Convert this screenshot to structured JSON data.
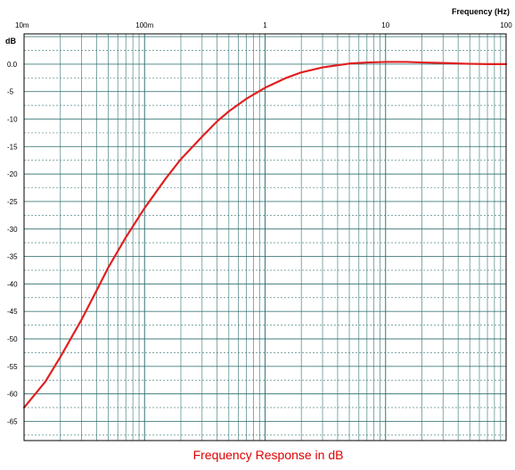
{
  "chart_data": {
    "type": "line",
    "title": "Frequency Response in dB",
    "xlabel": "Frequency  (Hz)",
    "ylabel": "dB",
    "x_scale": "log",
    "xlim": [
      0.01,
      100
    ],
    "ylim": [
      -68.5,
      5.5
    ],
    "grid": true,
    "x_tick_labels": [
      {
        "value": 0.01,
        "label": "10m"
      },
      {
        "value": 0.1,
        "label": "100m"
      },
      {
        "value": 1,
        "label": "1"
      },
      {
        "value": 10,
        "label": "10"
      },
      {
        "value": 100,
        "label": "100"
      }
    ],
    "y_tick_labels": [
      {
        "value": 0,
        "label": "0.0"
      },
      {
        "value": -5,
        "label": "-5"
      },
      {
        "value": -10,
        "label": "-10"
      },
      {
        "value": -15,
        "label": "-15"
      },
      {
        "value": -20,
        "label": "-20"
      },
      {
        "value": -25,
        "label": "-25"
      },
      {
        "value": -30,
        "label": "-30"
      },
      {
        "value": -35,
        "label": "-35"
      },
      {
        "value": -40,
        "label": "-40"
      },
      {
        "value": -45,
        "label": "-45"
      },
      {
        "value": -50,
        "label": "-50"
      },
      {
        "value": -55,
        "label": "-55"
      },
      {
        "value": -60,
        "label": "-60"
      },
      {
        "value": -65,
        "label": "-65"
      }
    ],
    "colors": {
      "line": "#e02020",
      "grid": "#2f6f6f",
      "caption": "#e00000"
    },
    "series": [
      {
        "x": [
          0.01,
          0.015,
          0.02,
          0.03,
          0.04,
          0.05,
          0.07,
          0.1,
          0.15,
          0.2,
          0.3,
          0.4,
          0.5,
          0.7,
          1,
          1.5,
          2,
          3,
          4,
          5,
          7,
          10,
          15,
          20,
          30,
          50,
          70,
          100
        ],
        "y": [
          -62.5,
          -57.8,
          -53.3,
          -46.5,
          -41.2,
          -37.0,
          -31.5,
          -26.2,
          -20.8,
          -17.3,
          -13.2,
          -10.4,
          -8.6,
          -6.3,
          -4.3,
          -2.5,
          -1.5,
          -0.6,
          -0.2,
          0.1,
          0.3,
          0.4,
          0.4,
          0.3,
          0.2,
          0.05,
          0.0,
          0.0
        ]
      }
    ]
  }
}
